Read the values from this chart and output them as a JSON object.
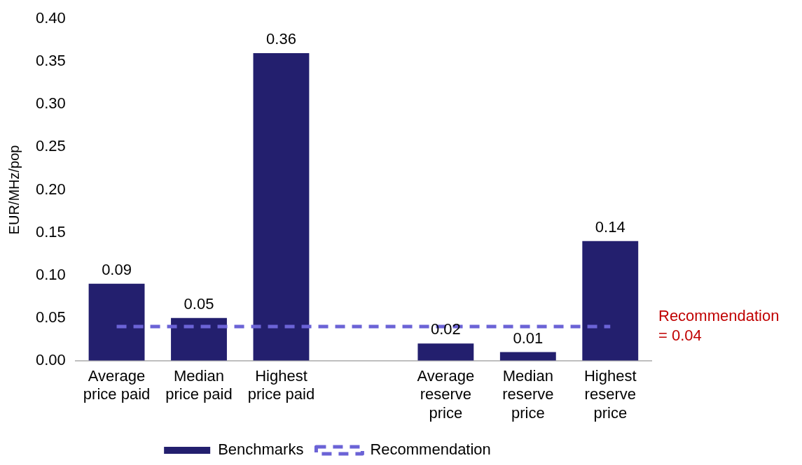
{
  "chart_data": {
    "type": "bar",
    "ylabel": "EUR/MHz/pop",
    "categories": [
      "Average price paid",
      "Median price paid",
      "Highest price paid",
      null,
      "Average reserve price",
      "Median reserve price",
      "Highest reserve price"
    ],
    "series": [
      {
        "name": "Benchmarks",
        "color": "#231f6e",
        "values": [
          0.09,
          0.05,
          0.36,
          null,
          0.02,
          0.01,
          0.14
        ],
        "value_labels": [
          "0.09",
          "0.05",
          "0.36",
          null,
          "0.02",
          "0.01",
          "0.14"
        ]
      },
      {
        "name": "Recommendation",
        "type": "line",
        "color": "#6b63d6",
        "line_style": "dashed",
        "marker": "none",
        "values": [
          0.04,
          0.04,
          0.04,
          0.04,
          0.04,
          0.04,
          0.04
        ]
      }
    ],
    "ylim": [
      0,
      0.4
    ],
    "yticks": [
      {
        "value": 0,
        "label": "0.00"
      },
      {
        "value": 0.05,
        "label": "0.05"
      },
      {
        "value": 0.1,
        "label": "0.10"
      },
      {
        "value": 0.15,
        "label": "0.15"
      },
      {
        "value": 0.2,
        "label": "0.20"
      },
      {
        "value": 0.25,
        "label": "0.25"
      },
      {
        "value": 0.3,
        "label": "0.30"
      },
      {
        "value": 0.35,
        "label": "0.35"
      },
      {
        "value": 0.4,
        "label": "0.40"
      }
    ],
    "annotations": [
      "Recommendation = 0.04"
    ],
    "grid": false,
    "legend": "bottom"
  }
}
